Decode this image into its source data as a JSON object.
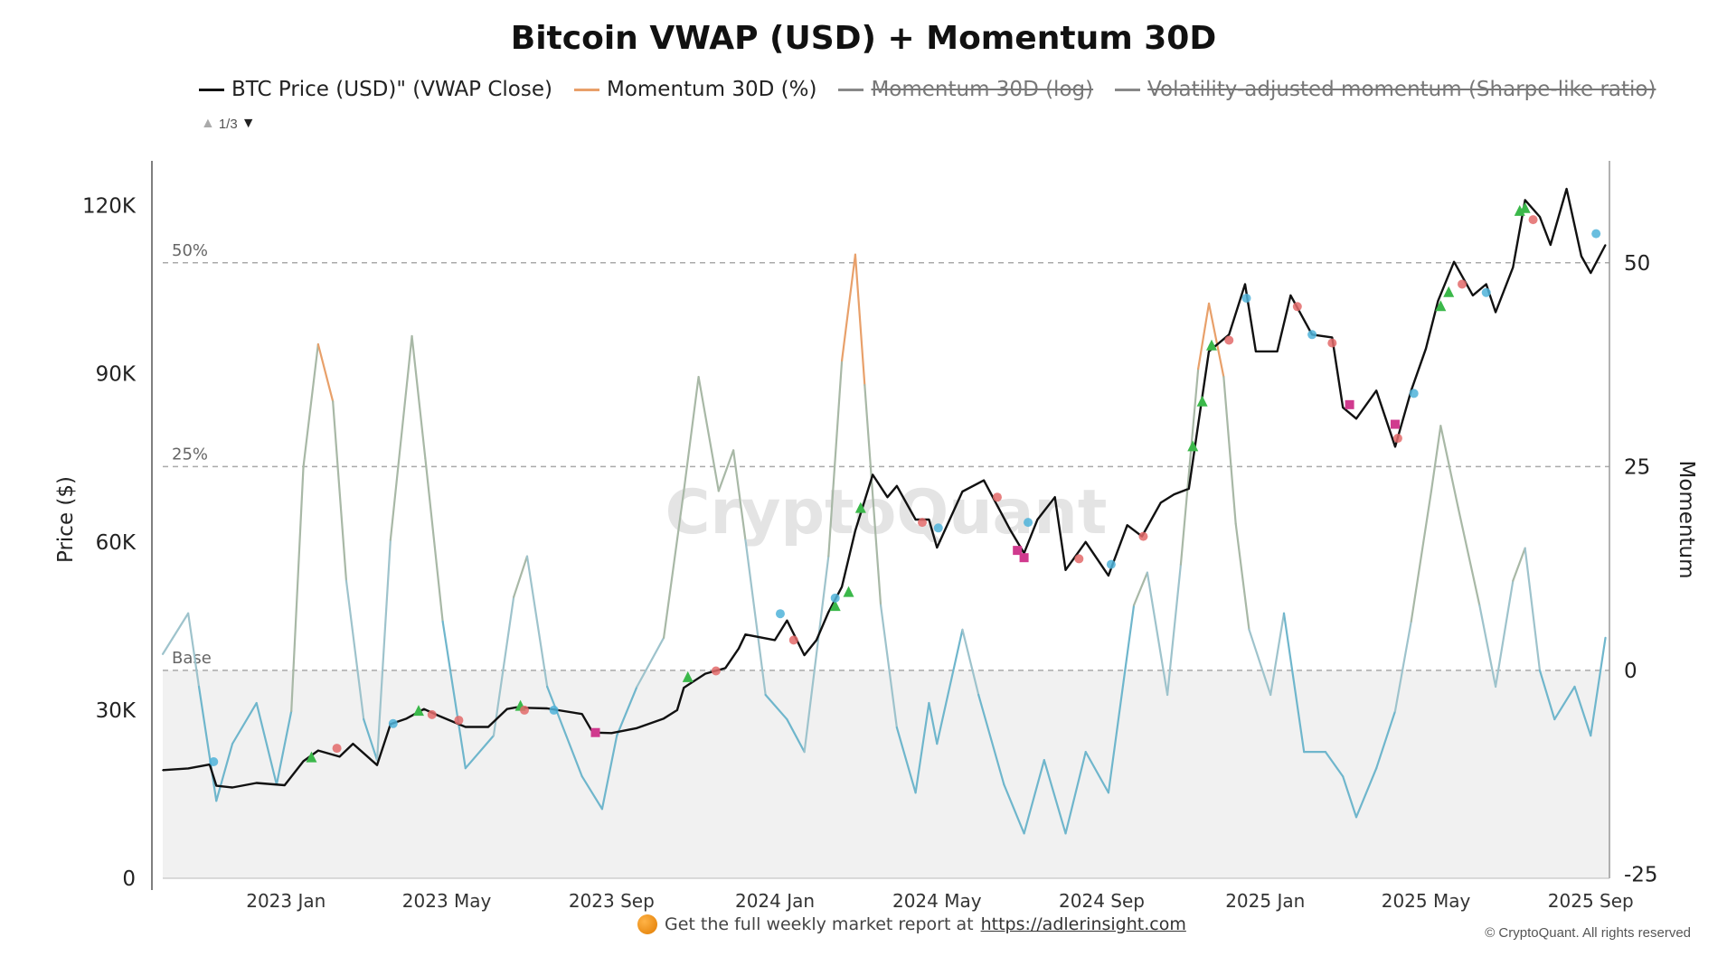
{
  "chart_data": {
    "type": "line",
    "title": "Bitcoin VWAP (USD) + Momentum 30D",
    "legend": [
      {
        "label": "BTC Price (USD)\" (VWAP Close)",
        "color": "#111111",
        "active": true
      },
      {
        "label": "Momentum 30D (%)",
        "color": "#e8a06a",
        "active": true
      },
      {
        "label": "Momentum 30D (log)",
        "color": "#888888",
        "active": false
      },
      {
        "label": "Volatility-adjusted momentum (Sharpe-like ratio)",
        "color": "#888888",
        "active": false
      }
    ],
    "legend_page": "1/3",
    "ylabel_left": "Price ($)",
    "ylabel_right": "Momentum",
    "x_ticks": [
      "2023 Jan",
      "2023 May",
      "2023 Sep",
      "2024 Jan",
      "2024 May",
      "2024 Sep",
      "2025 Jan",
      "2025 May",
      "2025 Sep"
    ],
    "x_range": [
      "2022-10-01",
      "2025-09-15"
    ],
    "y_left_ticks": [
      {
        "v": 0,
        "label": "0"
      },
      {
        "v": 30000,
        "label": "30K"
      },
      {
        "v": 60000,
        "label": "60K"
      },
      {
        "v": 90000,
        "label": "90K"
      },
      {
        "v": 120000,
        "label": "120K"
      }
    ],
    "y_left_range": [
      0,
      128000
    ],
    "y_right_ticks": [
      {
        "v": -25,
        "label": "-25"
      },
      {
        "v": 0,
        "label": "0"
      },
      {
        "v": 25,
        "label": "25"
      },
      {
        "v": 50,
        "label": "50"
      }
    ],
    "y_right_range": [
      -25.5,
      62.5
    ],
    "reference_lines": [
      {
        "label": "50%",
        "value": 50
      },
      {
        "label": "25%",
        "value": 25
      },
      {
        "label": "Base",
        "value": 0
      }
    ],
    "series": [
      {
        "name": "BTC Price (USD)\" (VWAP Close)",
        "axis": "left",
        "x": [
          "2022-10-01",
          "2022-10-20",
          "2022-11-05",
          "2022-11-10",
          "2022-11-22",
          "2022-12-10",
          "2022-12-31",
          "2023-01-14",
          "2023-01-25",
          "2023-02-10",
          "2023-02-20",
          "2023-03-10",
          "2023-03-20",
          "2023-04-01",
          "2023-04-14",
          "2023-04-25",
          "2023-05-15",
          "2023-06-01",
          "2023-06-15",
          "2023-06-22",
          "2023-07-01",
          "2023-07-15",
          "2023-08-10",
          "2023-08-18",
          "2023-09-01",
          "2023-09-20",
          "2023-10-10",
          "2023-10-20",
          "2023-10-25",
          "2023-11-10",
          "2023-11-25",
          "2023-12-05",
          "2023-12-10",
          "2024-01-01",
          "2024-01-10",
          "2024-01-23",
          "2024-02-01",
          "2024-02-10",
          "2024-02-20",
          "2024-03-01",
          "2024-03-14",
          "2024-03-25",
          "2024-04-01",
          "2024-04-15",
          "2024-04-25",
          "2024-05-01",
          "2024-05-20",
          "2024-06-05",
          "2024-06-25",
          "2024-07-05",
          "2024-07-15",
          "2024-07-28",
          "2024-08-05",
          "2024-08-20",
          "2024-09-06",
          "2024-09-20",
          "2024-10-01",
          "2024-10-15",
          "2024-10-25",
          "2024-11-05",
          "2024-11-12",
          "2024-11-20",
          "2024-12-05",
          "2024-12-17",
          "2024-12-25",
          "2025-01-10",
          "2025-01-20",
          "2025-02-05",
          "2025-02-20",
          "2025-02-28",
          "2025-03-10",
          "2025-03-25",
          "2025-04-08",
          "2025-04-20",
          "2025-05-01",
          "2025-05-10",
          "2025-05-22",
          "2025-06-05",
          "2025-06-15",
          "2025-06-22",
          "2025-07-05",
          "2025-07-14",
          "2025-07-25",
          "2025-08-02",
          "2025-08-14",
          "2025-08-25",
          "2025-09-01",
          "2025-09-12"
        ],
        "y": [
          19300,
          19600,
          20300,
          16500,
          16200,
          17000,
          16600,
          20900,
          22800,
          21700,
          24000,
          20200,
          27500,
          28500,
          30200,
          29000,
          27000,
          27000,
          30200,
          30500,
          30400,
          30300,
          29300,
          26000,
          25900,
          26800,
          28500,
          30000,
          34000,
          36500,
          37500,
          41000,
          43500,
          42500,
          46000,
          39800,
          42500,
          47500,
          52000,
          62000,
          72000,
          68000,
          70000,
          64000,
          64000,
          59000,
          69000,
          71000,
          62000,
          58000,
          64000,
          68000,
          55000,
          60000,
          54000,
          63000,
          61000,
          67000,
          68500,
          69500,
          81000,
          94000,
          97000,
          106000,
          94000,
          94000,
          104000,
          97000,
          96500,
          84000,
          82000,
          87000,
          77000,
          87000,
          94500,
          103000,
          110000,
          104000,
          106000,
          101000,
          109000,
          121000,
          118000,
          113000,
          123000,
          111000,
          108000,
          113000
        ]
      },
      {
        "name": "Momentum 30D (%)",
        "axis": "right",
        "x": [
          "2022-10-01",
          "2022-10-20",
          "2022-10-28",
          "2022-11-10",
          "2022-11-22",
          "2022-12-10",
          "2022-12-25",
          "2023-01-05",
          "2023-01-14",
          "2023-01-25",
          "2023-02-05",
          "2023-02-15",
          "2023-02-28",
          "2023-03-10",
          "2023-03-20",
          "2023-04-05",
          "2023-04-15",
          "2023-04-28",
          "2023-05-15",
          "2023-06-05",
          "2023-06-20",
          "2023-06-30",
          "2023-07-15",
          "2023-08-10",
          "2023-08-25",
          "2023-09-05",
          "2023-09-20",
          "2023-10-10",
          "2023-10-25",
          "2023-11-05",
          "2023-11-20",
          "2023-12-01",
          "2023-12-10",
          "2023-12-25",
          "2024-01-10",
          "2024-01-23",
          "2024-02-10",
          "2024-02-20",
          "2024-03-01",
          "2024-03-08",
          "2024-03-20",
          "2024-04-01",
          "2024-04-15",
          "2024-04-25",
          "2024-05-01",
          "2024-05-20",
          "2024-06-01",
          "2024-06-20",
          "2024-07-05",
          "2024-07-20",
          "2024-08-05",
          "2024-08-20",
          "2024-09-06",
          "2024-09-25",
          "2024-10-05",
          "2024-10-20",
          "2024-10-30",
          "2024-11-12",
          "2024-11-20",
          "2024-12-01",
          "2024-12-10",
          "2024-12-20",
          "2025-01-05",
          "2025-01-15",
          "2025-01-30",
          "2025-02-15",
          "2025-02-28",
          "2025-03-10",
          "2025-03-25",
          "2025-04-08",
          "2025-04-20",
          "2025-05-05",
          "2025-05-12",
          "2025-05-25",
          "2025-06-10",
          "2025-06-22",
          "2025-07-05",
          "2025-07-14",
          "2025-07-25",
          "2025-08-05",
          "2025-08-20",
          "2025-09-01",
          "2025-09-12"
        ],
        "y": [
          2,
          7,
          -2,
          -16,
          -9,
          -4,
          -14,
          -5,
          25,
          40,
          33,
          11,
          -6,
          -11,
          16,
          41,
          26,
          6,
          -12,
          -8,
          9,
          14,
          -2,
          -13,
          -17,
          -8,
          -2,
          4,
          22,
          36,
          22,
          27,
          16,
          -3,
          -6,
          -10,
          14,
          38,
          51,
          35,
          8,
          -7,
          -15,
          -4,
          -9,
          5,
          -3,
          -14,
          -20,
          -11,
          -20,
          -10,
          -15,
          8,
          12,
          -3,
          13,
          37,
          45,
          36,
          18,
          5,
          -3,
          7,
          -10,
          -10,
          -13,
          -18,
          -12,
          -5,
          6,
          22,
          30,
          20,
          8,
          -2,
          11,
          15,
          0,
          -6,
          -2,
          -8,
          4
        ]
      }
    ],
    "markers": [
      {
        "name": "up",
        "color": "#3bb84a",
        "x": [
          "2023-01-20",
          "2023-04-10",
          "2023-06-25",
          "2023-10-28",
          "2024-02-15",
          "2024-02-25",
          "2024-03-05",
          "2024-11-08",
          "2024-11-15",
          "2024-11-22",
          "2025-05-12",
          "2025-05-18",
          "2025-07-10",
          "2025-07-14"
        ],
        "y": [
          21500,
          29800,
          30700,
          35800,
          48500,
          51000,
          66000,
          77000,
          85000,
          95000,
          102000,
          104500,
          119000,
          119500
        ]
      },
      {
        "name": "down",
        "color": "#e36a6a",
        "x": [
          "2023-02-08",
          "2023-04-20",
          "2023-05-10",
          "2023-06-28",
          "2023-11-18",
          "2024-01-15",
          "2024-04-20",
          "2024-06-15",
          "2024-08-15",
          "2024-10-02",
          "2024-12-05",
          "2025-01-25",
          "2025-02-20",
          "2025-04-10",
          "2025-05-28",
          "2025-07-20"
        ],
        "y": [
          23200,
          29200,
          28200,
          30000,
          37000,
          42500,
          63500,
          68000,
          57000,
          61000,
          96000,
          102000,
          95500,
          78500,
          106000,
          117500
        ]
      },
      {
        "name": "blue",
        "color": "#4fb3d9",
        "x": [
          "2022-11-08",
          "2023-03-22",
          "2023-07-20",
          "2024-01-05",
          "2024-02-15",
          "2024-05-02",
          "2024-07-08",
          "2024-09-08",
          "2024-12-18",
          "2025-02-05",
          "2025-04-22",
          "2025-06-15",
          "2025-09-05"
        ],
        "y": [
          20800,
          27600,
          30000,
          47200,
          50000,
          62500,
          63500,
          56000,
          103500,
          97000,
          86500,
          104500,
          115000
        ]
      },
      {
        "name": "magenta",
        "color": "#d03a8e",
        "x": [
          "2023-08-20",
          "2024-06-30",
          "2024-07-05",
          "2025-03-05",
          "2025-04-08"
        ],
        "y": [
          26000,
          58500,
          57200,
          84500,
          81000
        ]
      }
    ]
  },
  "footer": {
    "text": "Get the full weekly market report at",
    "link": "https://adlerinsight.com"
  },
  "watermark": "CryptoQuant",
  "copyright": "© CryptoQuant. All rights reserved"
}
